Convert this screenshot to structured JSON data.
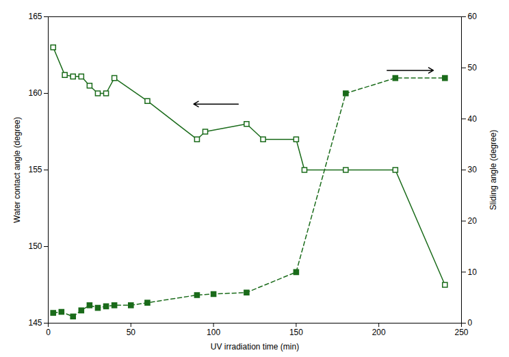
{
  "chart_data": {
    "type": "line",
    "xlabel": "UV irradiation time (min)",
    "ylabel": "Water contact angle (degree)",
    "y2label": "Sliding angle (degree)",
    "xlim": [
      0,
      250
    ],
    "xticks": [
      0,
      50,
      100,
      150,
      200,
      250
    ],
    "ylim": [
      145,
      165
    ],
    "yticks": [
      145,
      150,
      155,
      160,
      165
    ],
    "y2lim": [
      0,
      60
    ],
    "y2ticks": [
      0,
      10,
      20,
      30,
      40,
      50,
      60
    ],
    "series": [
      {
        "color": "#1a6b1a",
        "marker": "square_open",
        "line_style": "solid",
        "axis": "y",
        "x": [
          3,
          10,
          15,
          20,
          25,
          30,
          35,
          40,
          60,
          90,
          95,
          120,
          130,
          150,
          155,
          180,
          210,
          240
        ],
        "values": [
          163,
          161.2,
          161.1,
          161.1,
          160.5,
          160.0,
          160.0,
          161.0,
          159.5,
          157.0,
          157.5,
          158.0,
          157.0,
          157.0,
          155.0,
          155.0,
          155.0,
          147.5
        ]
      },
      {
        "color": "#1a6b1a",
        "marker": "square",
        "line_style": "dashed",
        "axis": "y2",
        "x": [
          3,
          8,
          15,
          20,
          25,
          30,
          35,
          40,
          50,
          60,
          90,
          100,
          120,
          150,
          180,
          210,
          240
        ],
        "values": [
          2.0,
          2.2,
          1.3,
          2.5,
          3.5,
          3.0,
          3.3,
          3.5,
          3.5,
          4.0,
          5.5,
          5.7,
          6.0,
          10.0,
          45.0,
          48.0,
          48.0
        ]
      }
    ],
    "annotations": [
      {
        "type": "arrow",
        "x1": 115,
        "x2": 88,
        "y": 159.3,
        "axis": "y"
      },
      {
        "type": "arrow",
        "x1": 205,
        "x2": 233,
        "y": 49.5,
        "axis": "y2"
      }
    ]
  }
}
